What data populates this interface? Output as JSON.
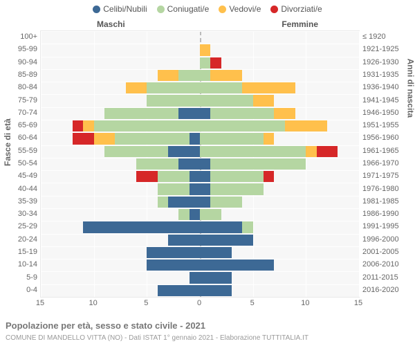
{
  "type": "population-pyramid",
  "background_color": "#ffffff",
  "plot_bg": "#f7f7f7",
  "grid_color": "#ffffff",
  "zero_line_color": "#bbbbbb",
  "font_color": "#666666",
  "legend": [
    {
      "label": "Celibi/Nubili",
      "color": "#3d6995"
    },
    {
      "label": "Coniugati/e",
      "color": "#b5d6a2"
    },
    {
      "label": "Vedovi/e",
      "color": "#ffc04c"
    },
    {
      "label": "Divorziati/e",
      "color": "#d62728"
    }
  ],
  "header_male": "Maschi",
  "header_female": "Femmine",
  "ylabel_left": "Fasce di età",
  "ylabel_right": "Anni di nascita",
  "xlim": 15,
  "xticks": [
    15,
    10,
    5,
    0,
    5,
    10,
    15
  ],
  "xtick_labels": [
    "15",
    "10",
    "5",
    "0",
    "5",
    "10",
    "15"
  ],
  "footer_title": "Popolazione per età, sesso e stato civile - 2021",
  "footer_sub": "COMUNE DI MANDELLO VITTA (NO) - Dati ISTAT 1° gennaio 2021 - Elaborazione TUTTITALIA.IT",
  "rows": [
    {
      "age": "100+",
      "birth": "≤ 1920",
      "m": {
        "s": 0,
        "m": 0,
        "w": 0,
        "d": 0
      },
      "f": {
        "s": 0,
        "m": 0,
        "w": 0,
        "d": 0
      }
    },
    {
      "age": "95-99",
      "birth": "1921-1925",
      "m": {
        "s": 0,
        "m": 0,
        "w": 0,
        "d": 0
      },
      "f": {
        "s": 0,
        "m": 0,
        "w": 1,
        "d": 0
      }
    },
    {
      "age": "90-94",
      "birth": "1926-1930",
      "m": {
        "s": 0,
        "m": 0,
        "w": 0,
        "d": 0
      },
      "f": {
        "s": 0,
        "m": 1,
        "w": 0,
        "d": 1
      }
    },
    {
      "age": "85-89",
      "birth": "1931-1935",
      "m": {
        "s": 0,
        "m": 2,
        "w": 2,
        "d": 0
      },
      "f": {
        "s": 0,
        "m": 1,
        "w": 3,
        "d": 0
      }
    },
    {
      "age": "80-84",
      "birth": "1936-1940",
      "m": {
        "s": 0,
        "m": 5,
        "w": 2,
        "d": 0
      },
      "f": {
        "s": 0,
        "m": 4,
        "w": 5,
        "d": 0
      }
    },
    {
      "age": "75-79",
      "birth": "1941-1945",
      "m": {
        "s": 0,
        "m": 5,
        "w": 0,
        "d": 0
      },
      "f": {
        "s": 0,
        "m": 5,
        "w": 2,
        "d": 0
      }
    },
    {
      "age": "70-74",
      "birth": "1946-1950",
      "m": {
        "s": 2,
        "m": 7,
        "w": 0,
        "d": 0
      },
      "f": {
        "s": 1,
        "m": 6,
        "w": 2,
        "d": 0
      }
    },
    {
      "age": "65-69",
      "birth": "1951-1955",
      "m": {
        "s": 0,
        "m": 10,
        "w": 1,
        "d": 1
      },
      "f": {
        "s": 0,
        "m": 8,
        "w": 4,
        "d": 0
      }
    },
    {
      "age": "60-64",
      "birth": "1956-1960",
      "m": {
        "s": 1,
        "m": 7,
        "w": 2,
        "d": 2
      },
      "f": {
        "s": 0,
        "m": 6,
        "w": 1,
        "d": 0
      }
    },
    {
      "age": "55-59",
      "birth": "1961-1965",
      "m": {
        "s": 3,
        "m": 6,
        "w": 0,
        "d": 0
      },
      "f": {
        "s": 0,
        "m": 10,
        "w": 1,
        "d": 2
      }
    },
    {
      "age": "50-54",
      "birth": "1966-1970",
      "m": {
        "s": 2,
        "m": 4,
        "w": 0,
        "d": 0
      },
      "f": {
        "s": 1,
        "m": 9,
        "w": 0,
        "d": 0
      }
    },
    {
      "age": "45-49",
      "birth": "1971-1975",
      "m": {
        "s": 1,
        "m": 3,
        "w": 0,
        "d": 2
      },
      "f": {
        "s": 1,
        "m": 5,
        "w": 0,
        "d": 1
      }
    },
    {
      "age": "40-44",
      "birth": "1976-1980",
      "m": {
        "s": 1,
        "m": 3,
        "w": 0,
        "d": 0
      },
      "f": {
        "s": 1,
        "m": 5,
        "w": 0,
        "d": 0
      }
    },
    {
      "age": "35-39",
      "birth": "1981-1985",
      "m": {
        "s": 3,
        "m": 1,
        "w": 0,
        "d": 0
      },
      "f": {
        "s": 1,
        "m": 3,
        "w": 0,
        "d": 0
      }
    },
    {
      "age": "30-34",
      "birth": "1986-1990",
      "m": {
        "s": 1,
        "m": 1,
        "w": 0,
        "d": 0
      },
      "f": {
        "s": 0,
        "m": 2,
        "w": 0,
        "d": 0
      }
    },
    {
      "age": "25-29",
      "birth": "1991-1995",
      "m": {
        "s": 11,
        "m": 0,
        "w": 0,
        "d": 0
      },
      "f": {
        "s": 4,
        "m": 1,
        "w": 0,
        "d": 0
      }
    },
    {
      "age": "20-24",
      "birth": "1996-2000",
      "m": {
        "s": 3,
        "m": 0,
        "w": 0,
        "d": 0
      },
      "f": {
        "s": 5,
        "m": 0,
        "w": 0,
        "d": 0
      }
    },
    {
      "age": "15-19",
      "birth": "2001-2005",
      "m": {
        "s": 5,
        "m": 0,
        "w": 0,
        "d": 0
      },
      "f": {
        "s": 3,
        "m": 0,
        "w": 0,
        "d": 0
      }
    },
    {
      "age": "10-14",
      "birth": "2006-2010",
      "m": {
        "s": 5,
        "m": 0,
        "w": 0,
        "d": 0
      },
      "f": {
        "s": 7,
        "m": 0,
        "w": 0,
        "d": 0
      }
    },
    {
      "age": "5-9",
      "birth": "2011-2015",
      "m": {
        "s": 1,
        "m": 0,
        "w": 0,
        "d": 0
      },
      "f": {
        "s": 3,
        "m": 0,
        "w": 0,
        "d": 0
      }
    },
    {
      "age": "0-4",
      "birth": "2016-2020",
      "m": {
        "s": 4,
        "m": 0,
        "w": 0,
        "d": 0
      },
      "f": {
        "s": 3,
        "m": 0,
        "w": 0,
        "d": 0
      }
    }
  ]
}
